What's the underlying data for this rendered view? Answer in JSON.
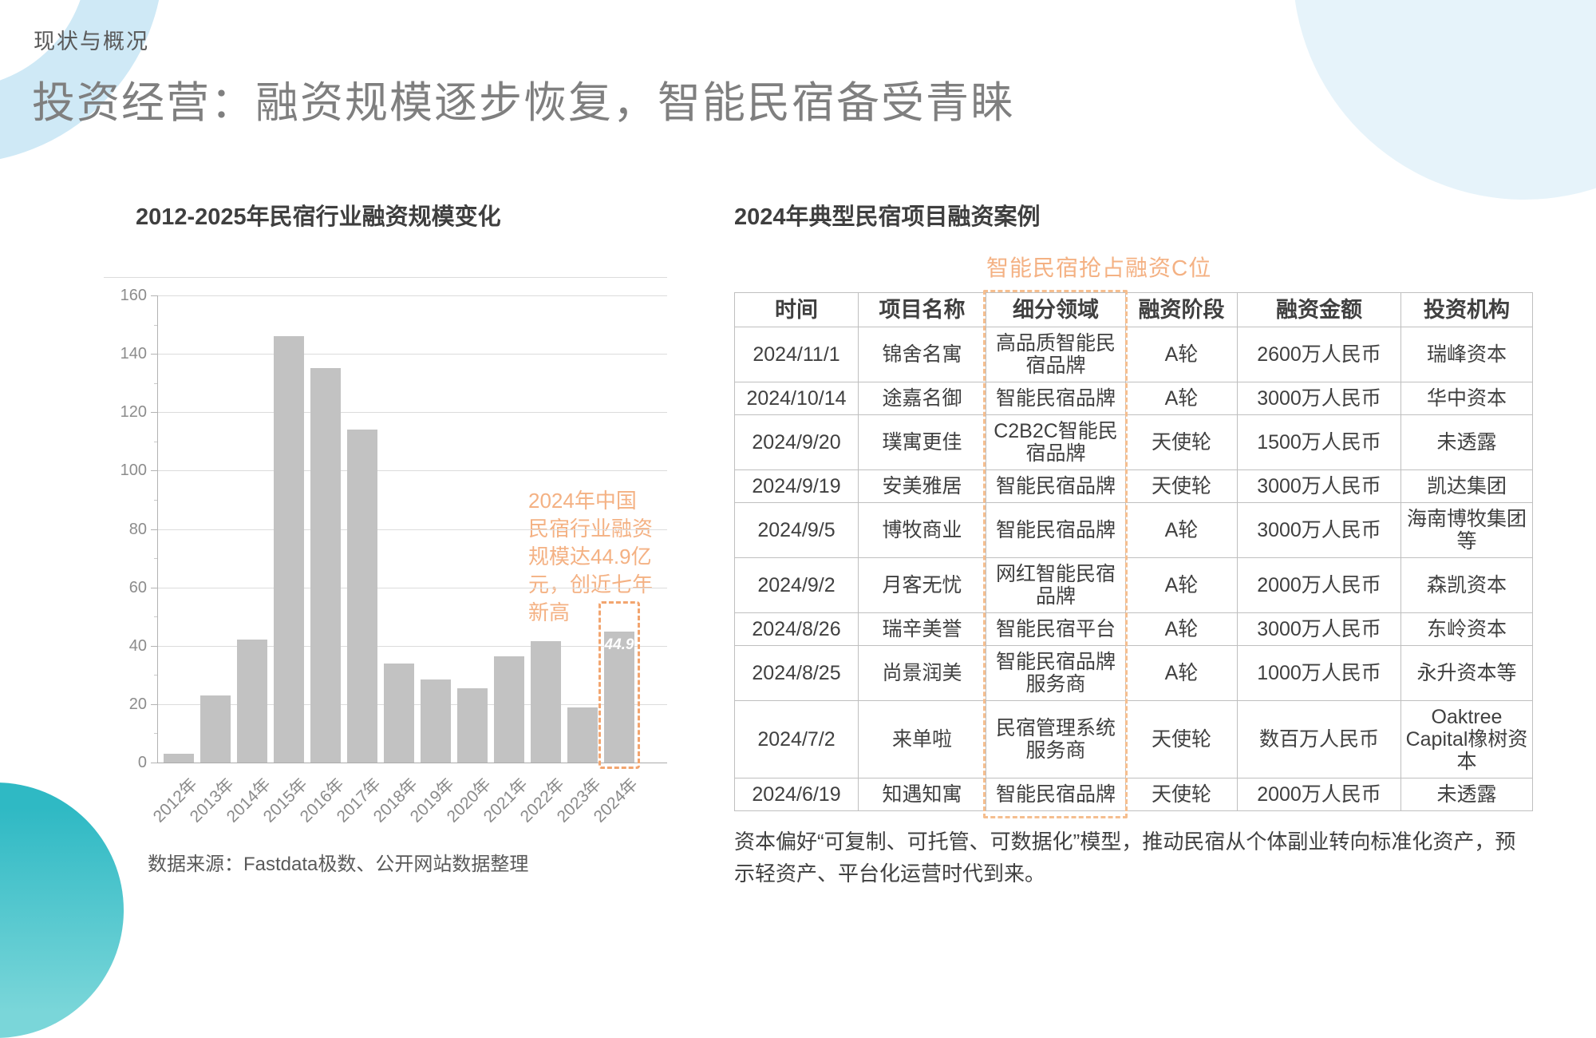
{
  "header": {
    "eyebrow": "现状与概况",
    "title": "投资经营：融资规模逐步恢复，智能民宿备受青睐"
  },
  "colors": {
    "accent_orange": "#F4B183",
    "bar_gray": "#C2C2C2",
    "teal_circle": "#2FB9C4",
    "pale_blue_circle": "#E6F3FA",
    "ring_blue": "#CFE9F6"
  },
  "chart_data": [
    {
      "type": "bar",
      "title": "2012-2025年民宿行业融资规模变化",
      "categories": [
        "2012年",
        "2013年",
        "2014年",
        "2015年",
        "2016年",
        "2017年",
        "2018年",
        "2019年",
        "2020年",
        "2021年",
        "2022年",
        "2023年",
        "2024年"
      ],
      "values": [
        3,
        23,
        42,
        146,
        135,
        114,
        34,
        28.5,
        25.5,
        36.5,
        41.5,
        19,
        44.9
      ],
      "ylim": [
        0,
        160
      ],
      "ytick_interval": 20,
      "grid": true,
      "legend": "none",
      "bar_color": "#C2C2C2",
      "highlight_index": 12,
      "highlight_label": "44.9",
      "highlight_color": "#F2A56F",
      "annotation": "2024年中国民宿行业融资规模达44.9亿元，创近七年新高",
      "source": "数据来源：Fastdata极数、公开网站数据整理"
    },
    {
      "type": "table",
      "title": "2024年典型民宿项目融资案例",
      "caption": "智能民宿抢占融资C位",
      "columns": [
        "时间",
        "项目名称",
        "细分领域",
        "融资阶段",
        "融资金额",
        "投资机构"
      ],
      "highlight_column": "细分领域",
      "rows": [
        [
          "2024/11/1",
          "锦舍名寓",
          "高品质智能民宿品牌",
          "A轮",
          "2600万人民币",
          "瑞峰资本"
        ],
        [
          "2024/10/14",
          "途嘉名御",
          "智能民宿品牌",
          "A轮",
          "3000万人民币",
          "华中资本"
        ],
        [
          "2024/9/20",
          "璞寓更佳",
          "C2B2C智能民宿品牌",
          "天使轮",
          "1500万人民币",
          "未透露"
        ],
        [
          "2024/9/19",
          "安美雅居",
          "智能民宿品牌",
          "天使轮",
          "3000万人民币",
          "凯达集团"
        ],
        [
          "2024/9/5",
          "博牧商业",
          "智能民宿品牌",
          "A轮",
          "3000万人民币",
          "海南博牧集团等"
        ],
        [
          "2024/9/2",
          "月客无忧",
          "网红智能民宿品牌",
          "A轮",
          "2000万人民币",
          "森凯资本"
        ],
        [
          "2024/8/26",
          "瑞辛美誉",
          "智能民宿平台",
          "A轮",
          "3000万人民币",
          "东岭资本"
        ],
        [
          "2024/8/25",
          "尚景润美",
          "智能民宿品牌服务商",
          "A轮",
          "1000万人民币",
          "永升资本等"
        ],
        [
          "2024/7/2",
          "来单啦",
          "民宿管理系统服务商",
          "天使轮",
          "数百万人民币",
          "Oaktree Capital橡树资本"
        ],
        [
          "2024/6/19",
          "知遇知寓",
          "智能民宿品牌",
          "天使轮",
          "2000万人民币",
          "未透露"
        ]
      ],
      "footnote": "资本偏好“可复制、可托管、可数据化”模型，推动民宿从个体副业转向标准化资产，预示轻资产、平台化运营时代到来。"
    }
  ]
}
